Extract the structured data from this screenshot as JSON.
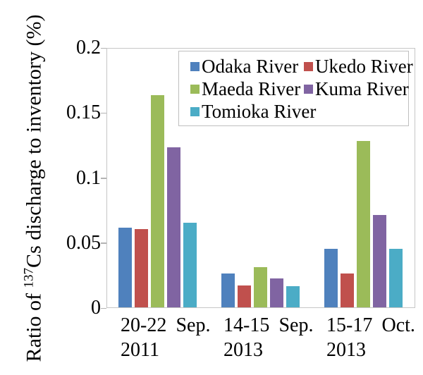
{
  "chart_data": {
    "type": "bar",
    "title": "",
    "xlabel": "",
    "ylabel_prefix": "Ratio of ",
    "ylabel_sup": "137",
    "ylabel_suffix": "Cs discharge to inventory (%)",
    "categories": [
      {
        "line1": "20-22 Sep.",
        "line2": "2011"
      },
      {
        "line1": "14-15 Sep.",
        "line2": "2013"
      },
      {
        "line1": "15-17 Oct.",
        "line2": "2013"
      }
    ],
    "series": [
      {
        "name": "Odaka River",
        "color": "#4F81BD",
        "values": [
          0.061,
          0.026,
          0.045
        ]
      },
      {
        "name": "Ukedo River",
        "color": "#C0504D",
        "values": [
          0.06,
          0.017,
          0.026
        ]
      },
      {
        "name": "Maeda River",
        "color": "#9BBB59",
        "values": [
          0.163,
          0.031,
          0.128
        ]
      },
      {
        "name": "Kuma River",
        "color": "#8064A2",
        "values": [
          0.123,
          0.022,
          0.071
        ]
      },
      {
        "name": "Tomioka River",
        "color": "#4BACC6",
        "values": [
          0.065,
          0.016,
          0.045
        ]
      }
    ],
    "y_axis": {
      "min": 0,
      "max": 0.2,
      "ticks": [
        0,
        0.05,
        0.1,
        0.15,
        0.2
      ],
      "tick_labels": [
        "0",
        "0.05",
        "0.1",
        "0.15",
        "0.2"
      ]
    },
    "ylim": [
      0,
      0.2
    ],
    "grid": false,
    "legend_position": "top-right"
  }
}
